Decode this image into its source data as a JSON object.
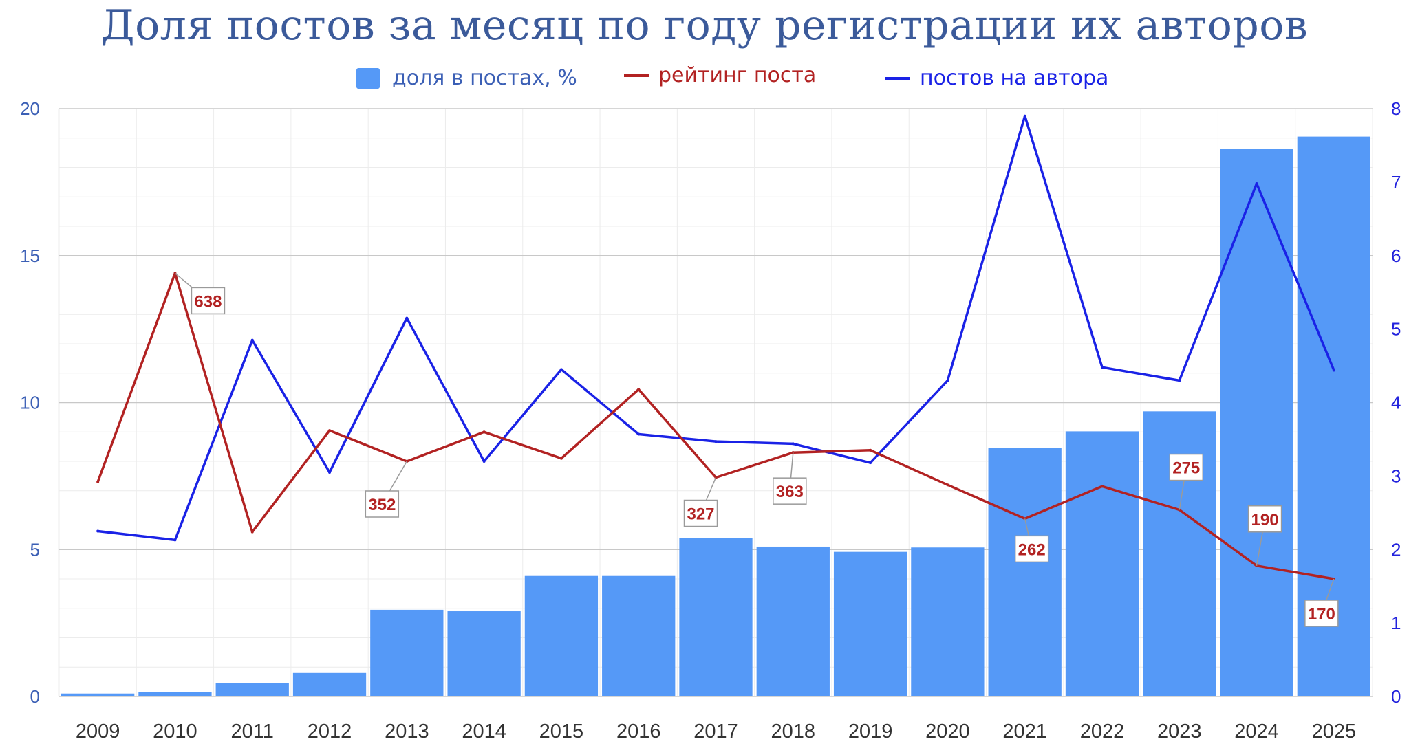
{
  "title": "Доля постов за месяц по году регистрации их авторов",
  "legend": {
    "bars": "доля в постах, %",
    "rating": "рейтинг поста",
    "posts": "постов на автора"
  },
  "colors": {
    "bars": "#5599f7",
    "rating": "#b22222",
    "posts": "#1a22e6",
    "title": "#3b5a9a",
    "axis_left": "#3b5fb5",
    "axis_right": "#2222dd"
  },
  "chart_data": {
    "type": "bar",
    "title": "Доля постов за месяц по году регистрации их авторов",
    "categories": [
      "2009",
      "2010",
      "2011",
      "2012",
      "2013",
      "2014",
      "2015",
      "2016",
      "2017",
      "2018",
      "2019",
      "2020",
      "2021",
      "2022",
      "2023",
      "2024",
      "2025"
    ],
    "y_left": {
      "ylim": [
        0,
        20
      ],
      "ticks": [
        0,
        5,
        10,
        15,
        20
      ]
    },
    "y_right": {
      "ylim": [
        0,
        8
      ],
      "ticks": [
        0,
        1,
        2,
        3,
        4,
        5,
        6,
        7,
        8
      ]
    },
    "grid": true,
    "legend_position": "top",
    "series": [
      {
        "name": "доля в постах, %",
        "type": "bar",
        "axis": "left",
        "values": [
          0.1,
          0.15,
          0.45,
          0.8,
          2.95,
          2.9,
          4.1,
          4.1,
          5.4,
          5.1,
          4.92,
          5.07,
          8.45,
          9.02,
          9.7,
          18.62,
          19.05
        ]
      },
      {
        "name": "рейтинг поста",
        "type": "line",
        "axis": "left",
        "values": [
          7.3,
          14.4,
          5.6,
          9.05,
          8.0,
          9.0,
          8.1,
          10.45,
          7.45,
          8.3,
          8.38,
          7.2,
          6.05,
          7.15,
          6.35,
          4.45,
          4.0
        ],
        "data_labels": [
          {
            "index": 1,
            "text": "638"
          },
          {
            "index": 4,
            "text": "352"
          },
          {
            "index": 8,
            "text": "327"
          },
          {
            "index": 9,
            "text": "363"
          },
          {
            "index": 12,
            "text": "262"
          },
          {
            "index": 14,
            "text": "275"
          },
          {
            "index": 15,
            "text": "190"
          },
          {
            "index": 16,
            "text": "170"
          }
        ]
      },
      {
        "name": "постов на автора",
        "type": "line",
        "axis": "right",
        "values": [
          2.25,
          2.13,
          4.85,
          3.05,
          5.15,
          3.2,
          4.45,
          3.57,
          3.47,
          3.44,
          3.18,
          4.3,
          7.9,
          4.48,
          4.3,
          6.98,
          4.44
        ]
      }
    ]
  }
}
